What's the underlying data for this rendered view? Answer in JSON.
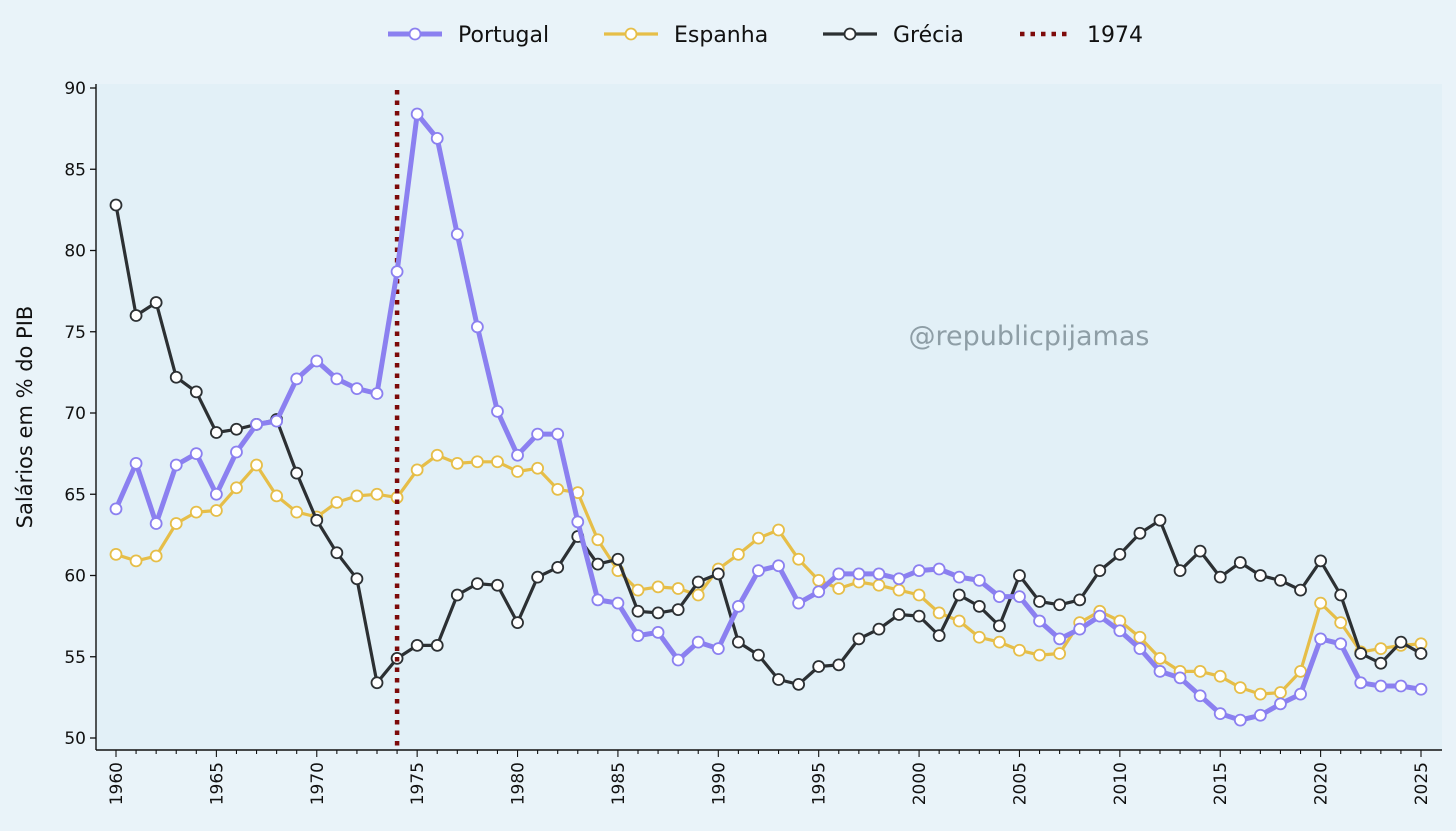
{
  "chart_data": {
    "type": "line",
    "title": "",
    "xlabel": "",
    "ylabel": "Salários em % do PIB",
    "xlim": [
      1960,
      2025
    ],
    "ylim": [
      50,
      90
    ],
    "y_ticks": [
      50,
      55,
      60,
      65,
      70,
      75,
      80,
      85,
      90
    ],
    "x_ticks": [
      1960,
      1965,
      1970,
      1975,
      1980,
      1985,
      1990,
      1995,
      2000,
      2005,
      2010,
      2015,
      2020,
      2025
    ],
    "grid": false,
    "legend_position": "top-center",
    "watermark": "@republicpijamas",
    "x": [
      1960,
      1961,
      1962,
      1963,
      1964,
      1965,
      1966,
      1967,
      1968,
      1969,
      1970,
      1971,
      1972,
      1973,
      1974,
      1975,
      1976,
      1977,
      1978,
      1979,
      1980,
      1981,
      1982,
      1983,
      1984,
      1985,
      1986,
      1987,
      1988,
      1989,
      1990,
      1991,
      1992,
      1993,
      1994,
      1995,
      1996,
      1997,
      1998,
      1999,
      2000,
      2001,
      2002,
      2003,
      2004,
      2005,
      2006,
      2007,
      2008,
      2009,
      2010,
      2011,
      2012,
      2013,
      2014,
      2015,
      2016,
      2017,
      2018,
      2019,
      2020,
      2021,
      2022,
      2023,
      2024,
      2025
    ],
    "series": [
      {
        "name": "Portugal",
        "color": "#8b80f0",
        "values": [
          64.1,
          66.9,
          63.2,
          66.8,
          67.5,
          65.0,
          67.6,
          69.3,
          69.5,
          72.1,
          73.2,
          72.1,
          71.5,
          71.2,
          78.7,
          88.4,
          86.9,
          81.0,
          75.3,
          70.1,
          67.4,
          68.7,
          68.7,
          63.3,
          58.5,
          58.3,
          56.3,
          56.5,
          54.8,
          55.9,
          55.5,
          58.1,
          60.3,
          60.6,
          58.3,
          59.0,
          60.1,
          60.1,
          60.1,
          59.8,
          60.3,
          60.4,
          59.9,
          59.7,
          58.7,
          58.7,
          57.2,
          56.1,
          56.7,
          57.5,
          56.6,
          55.5,
          54.1,
          53.7,
          52.6,
          51.5,
          51.1,
          51.4,
          52.1,
          52.7,
          56.1,
          55.8,
          53.4,
          53.2,
          53.2,
          53.0
        ]
      },
      {
        "name": "Espanha",
        "color": "#e6be48",
        "values": [
          61.3,
          60.9,
          61.2,
          63.2,
          63.9,
          64.0,
          65.4,
          66.8,
          64.9,
          63.9,
          63.6,
          64.5,
          64.9,
          65.0,
          64.8,
          66.5,
          67.4,
          66.9,
          67.0,
          67.0,
          66.4,
          66.6,
          65.3,
          65.1,
          62.2,
          60.3,
          59.1,
          59.3,
          59.2,
          58.8,
          60.4,
          61.3,
          62.3,
          62.8,
          61.0,
          59.7,
          59.2,
          59.6,
          59.4,
          59.1,
          58.8,
          57.7,
          57.2,
          56.2,
          55.9,
          55.4,
          55.1,
          55.2,
          57.1,
          57.8,
          57.2,
          56.2,
          54.9,
          54.1,
          54.1,
          53.8,
          53.1,
          52.7,
          52.8,
          54.1,
          58.3,
          57.1,
          55.3,
          55.5,
          55.7,
          55.8
        ]
      },
      {
        "name": "Grécia",
        "color": "#2c3033",
        "values": [
          82.8,
          76.0,
          76.8,
          72.2,
          71.3,
          68.8,
          69.0,
          69.3,
          69.6,
          66.3,
          63.4,
          61.4,
          59.8,
          53.4,
          54.9,
          55.7,
          55.7,
          58.8,
          59.5,
          59.4,
          57.1,
          59.9,
          60.5,
          62.4,
          60.7,
          61.0,
          57.8,
          57.7,
          57.9,
          59.6,
          60.1,
          55.9,
          55.1,
          53.6,
          53.3,
          54.4,
          54.5,
          56.1,
          56.7,
          57.6,
          57.5,
          56.3,
          58.8,
          58.1,
          56.9,
          60.0,
          58.4,
          58.2,
          58.5,
          60.3,
          61.3,
          62.6,
          63.4,
          60.3,
          61.5,
          59.9,
          60.8,
          60.0,
          59.7,
          59.1,
          60.9,
          58.8,
          55.2,
          54.6,
          55.9,
          55.2
        ]
      }
    ],
    "vline": {
      "name": "1974",
      "x": 1974,
      "color": "#7d0a0a"
    },
    "legend": [
      {
        "label": "Portugal",
        "color": "#8b80f0",
        "style": "line-marker"
      },
      {
        "label": "Espanha",
        "color": "#e6be48",
        "style": "line-marker"
      },
      {
        "label": "Grécia",
        "color": "#2c3033",
        "style": "line-marker"
      },
      {
        "label": "1974",
        "color": "#7d0a0a",
        "style": "dotted"
      }
    ]
  },
  "colors": {
    "page_bg": "#e9f3f9",
    "plot_bg": "#e2f0f7",
    "axis": "#111111",
    "marker_fill": "#ffffff"
  }
}
